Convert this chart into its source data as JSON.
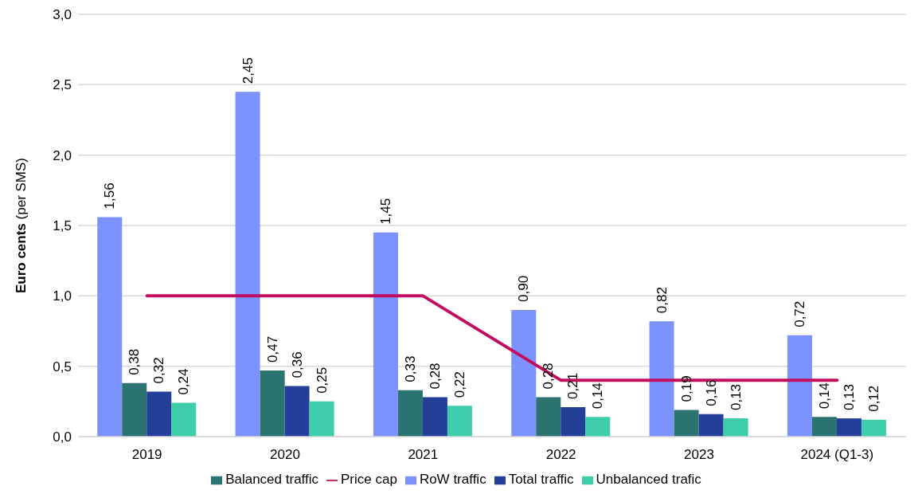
{
  "chart_data": {
    "type": "bar",
    "ylabel": "Euro cents (per SMS)",
    "categories": [
      "2019",
      "2020",
      "2021",
      "2022",
      "2023",
      "2024 (Q1-3)"
    ],
    "series": [
      {
        "name": "RoW traffic",
        "color": "#7b92ff",
        "values": [
          1.56,
          2.45,
          1.45,
          0.9,
          0.82,
          0.72
        ],
        "value_labels": [
          "1,56",
          "2,45",
          "1,45",
          "0,90",
          "0,82",
          "0,72"
        ]
      },
      {
        "name": "Balanced traffic",
        "color": "#2b7370",
        "values": [
          0.38,
          0.47,
          0.33,
          0.28,
          0.19,
          0.14
        ],
        "value_labels": [
          "0,38",
          "0,47",
          "0,33",
          "0,28",
          "0,19",
          "0,14"
        ]
      },
      {
        "name": "Total traffic",
        "color": "#233f98",
        "values": [
          0.32,
          0.36,
          0.28,
          0.21,
          0.16,
          0.13
        ],
        "value_labels": [
          "0,32",
          "0,36",
          "0,28",
          "0,21",
          "0,16",
          "0,13"
        ]
      },
      {
        "name": "Unbalanced trafic",
        "color": "#3ecdab",
        "values": [
          0.24,
          0.25,
          0.22,
          0.14,
          0.13,
          0.12
        ],
        "value_labels": [
          "0,24",
          "0,25",
          "0,22",
          "0,14",
          "0,13",
          "0,12"
        ]
      },
      {
        "name": "Price cap",
        "type": "line",
        "color": "#c20c5e",
        "values": [
          1.0,
          1.0,
          1.0,
          0.4,
          0.4,
          0.4
        ],
        "marker": "none",
        "line_style": "solid"
      }
    ],
    "ylim": [
      0,
      3
    ],
    "yticks": [
      {
        "value": 0,
        "label": "0,0"
      },
      {
        "value": 0.5,
        "label": "0,5"
      },
      {
        "value": 1,
        "label": "1,0"
      },
      {
        "value": 1.5,
        "label": "1,5"
      },
      {
        "value": 2,
        "label": "2,0"
      },
      {
        "value": 2.5,
        "label": "2,5"
      },
      {
        "value": 3,
        "label": "3,0"
      }
    ],
    "grid": "y",
    "legend": "bottom"
  }
}
